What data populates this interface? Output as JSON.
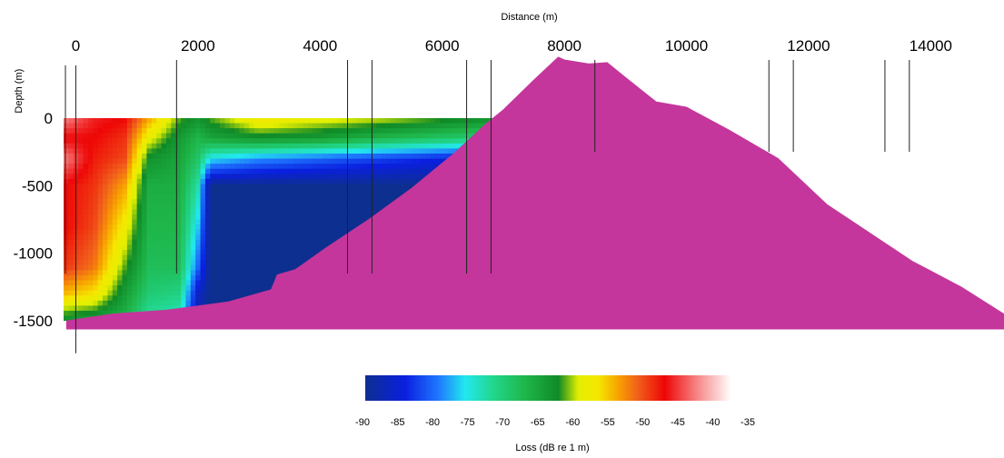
{
  "chart_data": {
    "type": "heatmap",
    "title": "",
    "xlabel": "Distance (m)",
    "ylabel": "Depth (m)",
    "colorbar_label": "Loss (dB re 1 m)",
    "x_ticks": [
      0,
      2000,
      4000,
      6000,
      8000,
      10000,
      12000,
      14000
    ],
    "y_ticks": [
      0,
      -500,
      -1000,
      -1500
    ],
    "xlim": [
      -200,
      15200
    ],
    "ylim": [
      -1580,
      470
    ],
    "colorbar_ticks": [
      -90,
      -85,
      -80,
      -75,
      -70,
      -65,
      -60,
      -55,
      -50,
      -45,
      -40,
      -35
    ],
    "colorbar_range": [
      -90,
      -35
    ],
    "colormap": [
      {
        "value": -90,
        "color": "#0d2f8f"
      },
      {
        "value": -84,
        "color": "#0a1fe0"
      },
      {
        "value": -79,
        "color": "#1f78ff"
      },
      {
        "value": -75,
        "color": "#22e8ee"
      },
      {
        "value": -71,
        "color": "#22d890"
      },
      {
        "value": -66,
        "color": "#1fb64a"
      },
      {
        "value": -61,
        "color": "#108a26"
      },
      {
        "value": -58,
        "color": "#e2ef00"
      },
      {
        "value": -55,
        "color": "#f5e700"
      },
      {
        "value": -52,
        "color": "#f7a300"
      },
      {
        "value": -49,
        "color": "#f05e1b"
      },
      {
        "value": -45,
        "color": "#ee0606"
      },
      {
        "value": -40,
        "color": "#f78a8a"
      },
      {
        "value": -35,
        "color": "#ffffff"
      }
    ],
    "terrain_color": "#c4369b",
    "vertical_lines_x": [
      -170,
      0,
      1650,
      4450,
      4850,
      6400,
      6800,
      8500,
      11350,
      11750,
      13250,
      13650
    ],
    "terrain_profile": [
      {
        "x": -150,
        "depth": -1500
      },
      {
        "x": 600,
        "depth": -1450
      },
      {
        "x": 1500,
        "depth": -1420
      },
      {
        "x": 2500,
        "depth": -1360
      },
      {
        "x": 3200,
        "depth": -1270
      },
      {
        "x": 3300,
        "depth": -1160
      },
      {
        "x": 3600,
        "depth": -1120
      },
      {
        "x": 4100,
        "depth": -960
      },
      {
        "x": 4800,
        "depth": -750
      },
      {
        "x": 5500,
        "depth": -520
      },
      {
        "x": 6200,
        "depth": -260
      },
      {
        "x": 6700,
        "depth": -50
      },
      {
        "x": 7000,
        "depth": 60
      },
      {
        "x": 7500,
        "depth": 280
      },
      {
        "x": 7900,
        "depth": 450
      },
      {
        "x": 8000,
        "depth": 430
      },
      {
        "x": 8400,
        "depth": 400
      },
      {
        "x": 8700,
        "depth": 410
      },
      {
        "x": 9000,
        "depth": 300
      },
      {
        "x": 9500,
        "depth": 120
      },
      {
        "x": 10000,
        "depth": 80
      },
      {
        "x": 10700,
        "depth": -90
      },
      {
        "x": 11500,
        "depth": -300
      },
      {
        "x": 12300,
        "depth": -640
      },
      {
        "x": 13000,
        "depth": -850
      },
      {
        "x": 13700,
        "depth": -1060
      },
      {
        "x": 14500,
        "depth": -1250
      },
      {
        "x": 15200,
        "depth": -1450
      }
    ],
    "loss_field": {
      "depths": [
        0,
        -150,
        -300,
        -500,
        -800,
        -1100,
        -1300,
        -1500
      ],
      "columns": [
        {
          "x": -200,
          "loss": [
            -40,
            -45,
            -40,
            -45,
            -45,
            -47,
            -53,
            -63
          ]
        },
        {
          "x": 300,
          "loss": [
            -44,
            -45,
            -46,
            -47,
            -48,
            -50,
            -55,
            -64
          ]
        },
        {
          "x": 800,
          "loss": [
            -45,
            -47,
            -48,
            -52,
            -56,
            -60,
            -63,
            -66
          ]
        },
        {
          "x": 1200,
          "loss": [
            -52,
            -57,
            -62,
            -65,
            -66,
            -67,
            -69,
            -72
          ]
        },
        {
          "x": 1700,
          "loss": [
            -60,
            -63,
            -64,
            -65,
            -66,
            -67,
            -70,
            -74
          ]
        },
        {
          "x": 2000,
          "loss": [
            -62,
            -66,
            -68,
            -72,
            -76,
            -80,
            -86,
            -88
          ]
        },
        {
          "x": 2200,
          "loss": [
            -60,
            -64,
            -75,
            -90,
            -90,
            -90,
            -90,
            -90
          ]
        },
        {
          "x": 3000,
          "loss": [
            -55,
            -62,
            -78,
            -90,
            -90,
            -90,
            -90,
            -90
          ]
        },
        {
          "x": 4000,
          "loss": [
            -57,
            -63,
            -80,
            -90,
            -90,
            -90,
            -90,
            -90
          ]
        },
        {
          "x": 5000,
          "loss": [
            -58,
            -66,
            -82,
            -90,
            -90,
            -90,
            -90,
            -90
          ]
        },
        {
          "x": 6000,
          "loss": [
            -60,
            -68,
            -84,
            -90,
            -90,
            -90,
            -90,
            -90
          ]
        },
        {
          "x": 7000,
          "loss": [
            -62,
            -70,
            -86,
            -90,
            -90,
            -90,
            -90,
            -90
          ]
        }
      ]
    }
  }
}
